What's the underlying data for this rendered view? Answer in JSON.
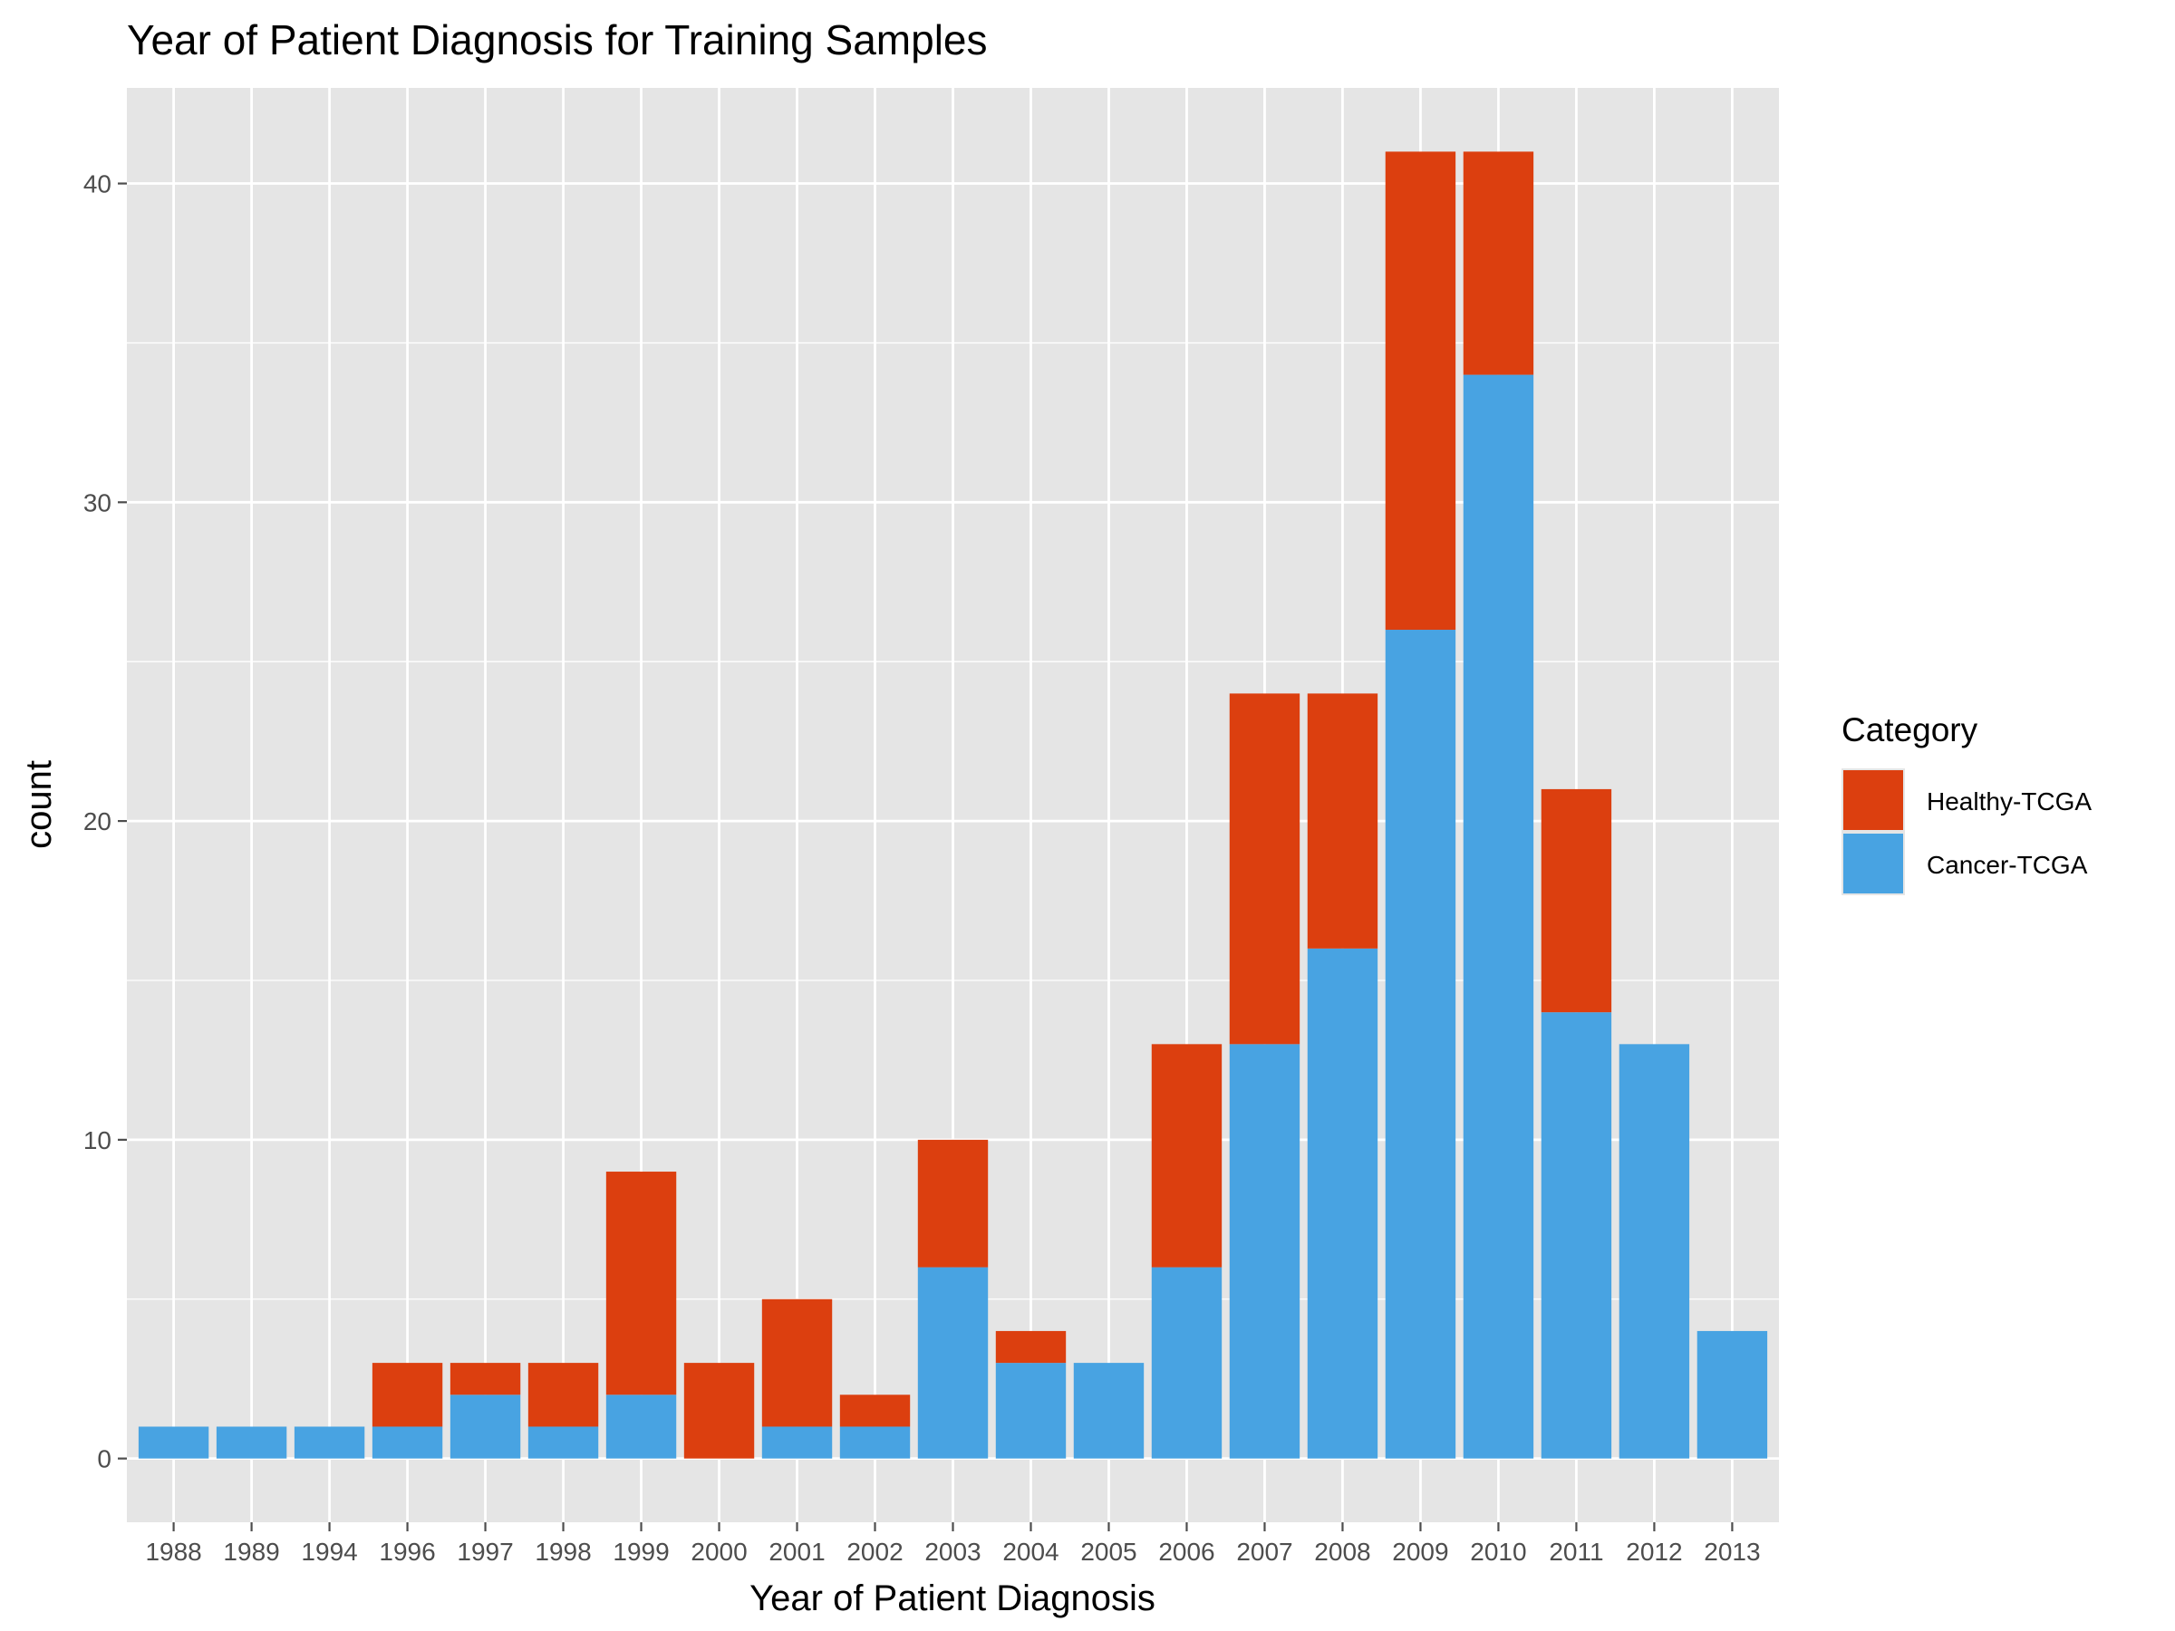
{
  "colors": {
    "panel": "#e5e5e5",
    "grid": "#ffffff",
    "tick": "#4d4d4d",
    "healthy": "#dc3f0f",
    "cancer": "#48a3e2"
  },
  "chart_data": {
    "type": "bar",
    "stacked": true,
    "title": "Year of Patient Diagnosis for Training Samples",
    "xlabel": "Year of Patient Diagnosis",
    "ylabel": "count",
    "ylim": [
      -2,
      43
    ],
    "yticks": [
      0,
      10,
      20,
      30,
      40
    ],
    "grid": true,
    "legend": {
      "title": "Category",
      "position": "right",
      "entries": [
        "Healthy-TCGA",
        "Cancer-TCGA"
      ]
    },
    "categories": [
      "1988",
      "1989",
      "1994",
      "1996",
      "1997",
      "1998",
      "1999",
      "2000",
      "2001",
      "2002",
      "2003",
      "2004",
      "2005",
      "2006",
      "2007",
      "2008",
      "2009",
      "2010",
      "2011",
      "2012",
      "2013"
    ],
    "series": [
      {
        "name": "Cancer-TCGA",
        "color": "#48a3e2",
        "values": [
          1,
          1,
          1,
          1,
          2,
          1,
          2,
          0,
          1,
          1,
          6,
          3,
          3,
          6,
          13,
          16,
          26,
          34,
          14,
          13,
          4
        ]
      },
      {
        "name": "Healthy-TCGA",
        "color": "#dc3f0f",
        "values": [
          0,
          0,
          0,
          2,
          1,
          2,
          7,
          3,
          4,
          1,
          4,
          1,
          0,
          7,
          11,
          8,
          15,
          7,
          7,
          0,
          0
        ]
      }
    ]
  }
}
